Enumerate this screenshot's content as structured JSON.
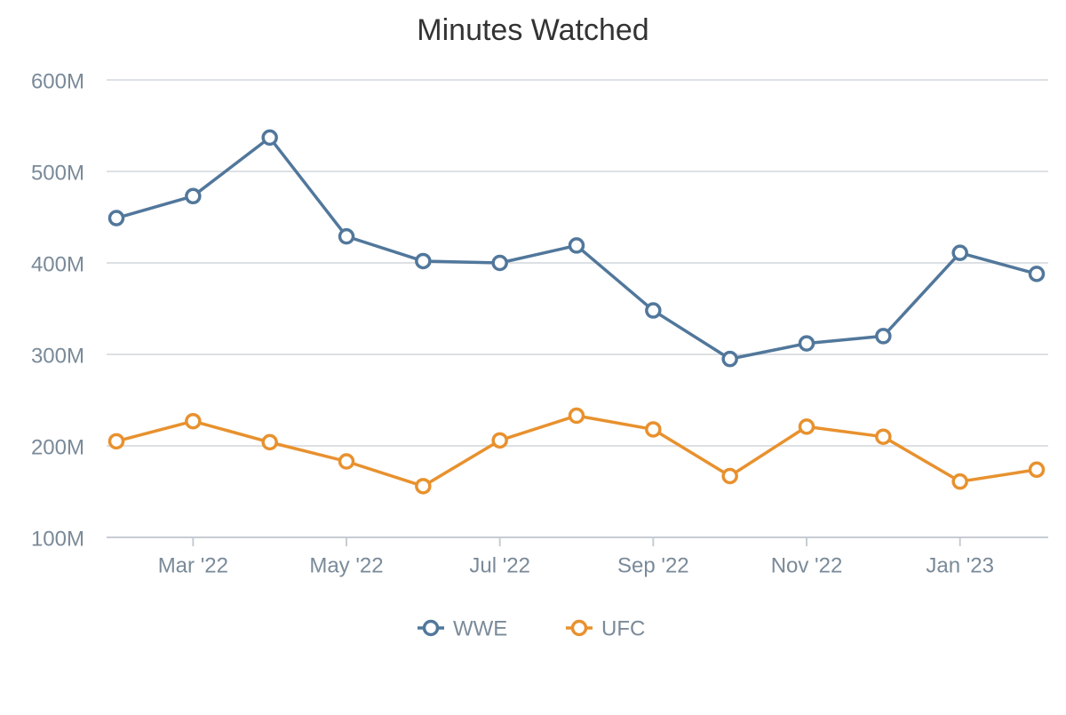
{
  "chart_data": {
    "type": "line",
    "title": "Minutes Watched",
    "categories": [
      null,
      "Mar '22",
      null,
      "May '22",
      null,
      "Jul '22",
      null,
      "Sep '22",
      null,
      "Nov '22",
      null,
      "Jan '23",
      null
    ],
    "series": [
      {
        "name": "WWE",
        "color": "#51779b",
        "values": [
          449000000,
          473000000,
          537000000,
          429000000,
          402000000,
          400000000,
          419000000,
          348000000,
          295000000,
          312000000,
          320000000,
          411000000,
          388000000
        ]
      },
      {
        "name": "UFC",
        "color": "#e8912e",
        "values": [
          205000000,
          227000000,
          204000000,
          183000000,
          156000000,
          206000000,
          233000000,
          218000000,
          167000000,
          221000000,
          210000000,
          161000000,
          174000000
        ]
      }
    ],
    "ylim": [
      100000000,
      600000000
    ],
    "yticks": [
      {
        "value": 100000000,
        "label": "100M"
      },
      {
        "value": 200000000,
        "label": "200M"
      },
      {
        "value": 300000000,
        "label": "300M"
      },
      {
        "value": 400000000,
        "label": "400M"
      },
      {
        "value": 500000000,
        "label": "500M"
      },
      {
        "value": 600000000,
        "label": "600M"
      }
    ],
    "grid": true,
    "legend": "bottom"
  }
}
